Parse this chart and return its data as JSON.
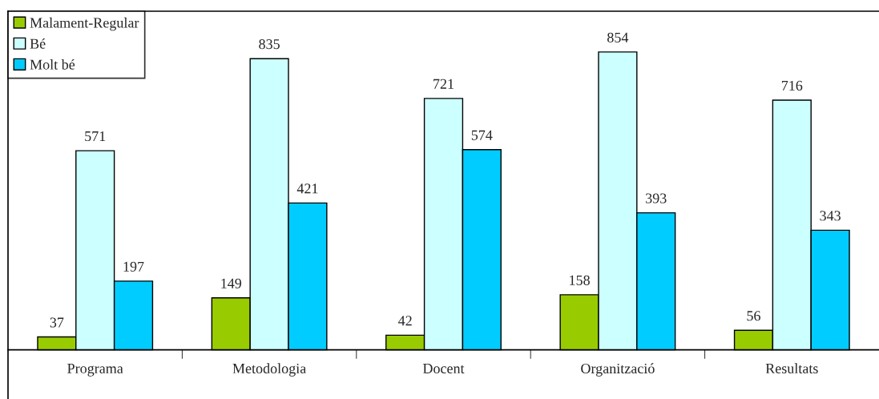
{
  "chart_data": {
    "type": "bar",
    "categories": [
      "Programa",
      "Metodologia",
      "Docent",
      "Organització",
      "Resultats"
    ],
    "series": [
      {
        "name": "Malament-Regular",
        "color": "#99cc00",
        "values": [
          37,
          149,
          42,
          158,
          56
        ]
      },
      {
        "name": "Bé",
        "color": "#ccffff",
        "values": [
          571,
          835,
          721,
          854,
          716
        ]
      },
      {
        "name": "Molt bé",
        "color": "#00ccff",
        "values": [
          197,
          421,
          574,
          393,
          343
        ]
      }
    ],
    "data_labels": true,
    "legend": "top left",
    "grid": false
  }
}
